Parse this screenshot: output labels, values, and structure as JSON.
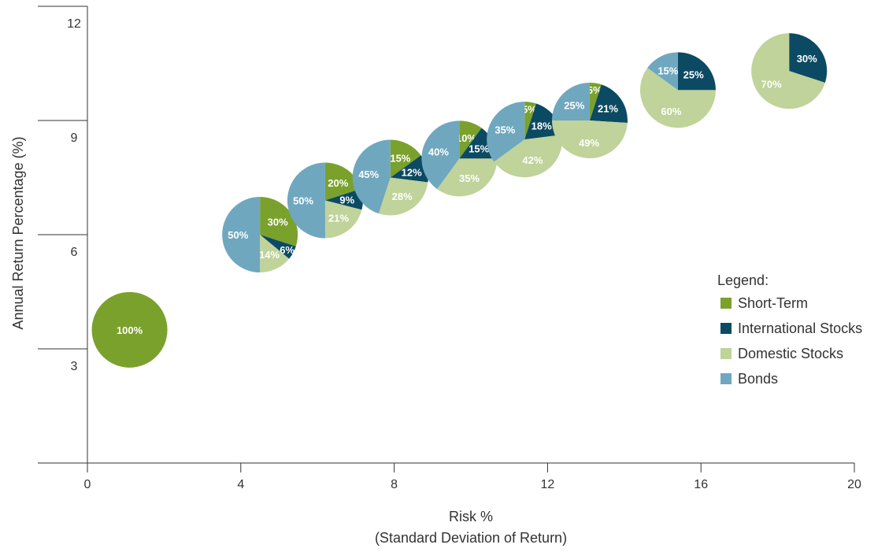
{
  "chart_data": {
    "type": "scatter",
    "subtype": "pie-markers",
    "xlabel": "Risk %",
    "xlabel_line2": "(Standard Deviation of Return)",
    "ylabel": "Annual Return Percentage (%)",
    "xlim": [
      0,
      20
    ],
    "ylim": [
      0,
      12
    ],
    "x_ticks": [
      "0",
      "4",
      "8",
      "12",
      "16",
      "20"
    ],
    "y_ticks": [
      "3",
      "6",
      "9",
      "12"
    ],
    "grid": false,
    "legend": {
      "title": "Legend:",
      "placement": "right",
      "entries": [
        "Short-Term",
        "International Stocks",
        "Domestic Stocks",
        "Bonds"
      ]
    },
    "colors": {
      "Short-Term": "#7aa12c",
      "International Stocks": "#0c4a63",
      "Domestic Stocks": "#bfd39a",
      "Bonds": "#6fa7bf"
    },
    "portfolios": [
      {
        "x": 1.1,
        "y": 3.5,
        "allocation": {
          "Short-Term": 100,
          "International Stocks": 0,
          "Domestic Stocks": 0,
          "Bonds": 0
        },
        "labels": [
          "100%"
        ]
      },
      {
        "x": 4.5,
        "y": 6.0,
        "allocation": {
          "Short-Term": 30,
          "International Stocks": 6,
          "Domestic Stocks": 14,
          "Bonds": 50
        },
        "labels": [
          "30%",
          "6%",
          "14%",
          "50%"
        ]
      },
      {
        "x": 6.2,
        "y": 6.9,
        "allocation": {
          "Short-Term": 20,
          "International Stocks": 9,
          "Domestic Stocks": 21,
          "Bonds": 50
        },
        "labels": [
          "20%",
          "9%",
          "21%",
          "50%"
        ]
      },
      {
        "x": 7.9,
        "y": 7.5,
        "allocation": {
          "Short-Term": 15,
          "International Stocks": 12,
          "Domestic Stocks": 28,
          "Bonds": 45
        },
        "labels": [
          "15%",
          "12%",
          "28%",
          "45%"
        ]
      },
      {
        "x": 9.7,
        "y": 8.0,
        "allocation": {
          "Short-Term": 10,
          "International Stocks": 15,
          "Domestic Stocks": 35,
          "Bonds": 40
        },
        "labels": [
          "10%",
          "15%",
          "35%",
          "40%"
        ]
      },
      {
        "x": 11.4,
        "y": 8.5,
        "allocation": {
          "Short-Term": 5,
          "International Stocks": 18,
          "Domestic Stocks": 42,
          "Bonds": 35
        },
        "labels": [
          "5%",
          "18%",
          "42%",
          "35%"
        ]
      },
      {
        "x": 13.1,
        "y": 9.0,
        "allocation": {
          "Short-Term": 5,
          "International Stocks": 21,
          "Domestic Stocks": 49,
          "Bonds": 25
        },
        "labels": [
          "5%",
          "21%",
          "49%",
          "25%"
        ]
      },
      {
        "x": 15.4,
        "y": 9.8,
        "allocation": {
          "Short-Term": 0,
          "International Stocks": 25,
          "Domestic Stocks": 60,
          "Bonds": 15
        },
        "labels": [
          "",
          "25%",
          "60%",
          "15%"
        ]
      },
      {
        "x": 18.3,
        "y": 10.3,
        "allocation": {
          "Short-Term": 0,
          "International Stocks": 30,
          "Domestic Stocks": 70,
          "Bonds": 0
        },
        "labels": [
          "",
          "30%",
          "70%",
          ""
        ]
      }
    ]
  }
}
